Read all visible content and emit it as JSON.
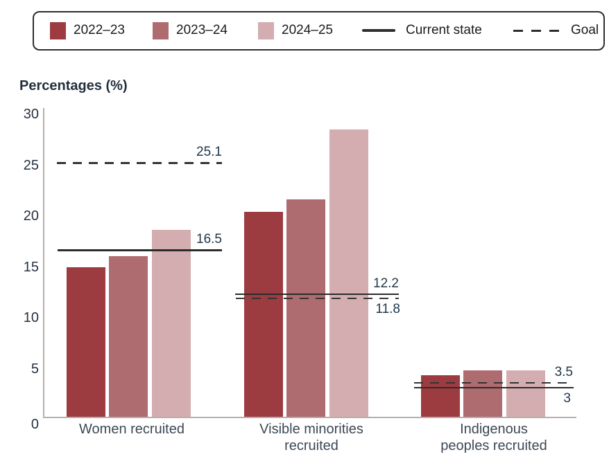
{
  "legend": {
    "items": [
      {
        "label": "2022–23",
        "type": "swatch"
      },
      {
        "label": "2023–24",
        "type": "swatch"
      },
      {
        "label": "2024–25",
        "type": "swatch"
      },
      {
        "label": "Current state",
        "type": "solid-line"
      },
      {
        "label": "Goal",
        "type": "dashed-line"
      }
    ]
  },
  "colors": {
    "bar_2022_23": "#9c3c40",
    "bar_2023_24": "#ae6b70",
    "bar_2024_25": "#d3adb0",
    "reference_line": "#2e2e2e",
    "axis_line": "#b6afab",
    "label_text": "#223648"
  },
  "chart_data": {
    "type": "bar",
    "title": "",
    "ylabel": "Percentages (%)",
    "xlabel": "",
    "ylim": [
      0,
      30
    ],
    "yticks": [
      0,
      5,
      10,
      15,
      20,
      25,
      30
    ],
    "grid": false,
    "legend_position": "top",
    "categories": [
      "Women recruited",
      "Visible minorities recruited",
      "Indigenous peoples recruited"
    ],
    "categories_display": [
      "Women recruited",
      "Visible minorities\nrecruited",
      "Indigenous\npeoples recruited"
    ],
    "series": [
      {
        "name": "2022–23",
        "color": "#9c3c40",
        "values": [
          14.8,
          20.3,
          4.2
        ]
      },
      {
        "name": "2023–24",
        "color": "#ae6b70",
        "values": [
          15.9,
          21.5,
          4.7
        ]
      },
      {
        "name": "2024–25",
        "color": "#d3adb0",
        "values": [
          18.5,
          28.4,
          4.7
        ]
      }
    ],
    "reference_lines": [
      {
        "group": "Women recruited",
        "name": "Current state",
        "style": "solid",
        "value": 16.5,
        "label": "16.5"
      },
      {
        "group": "Women recruited",
        "name": "Goal",
        "style": "dashed",
        "value": 25.1,
        "label": "25.1"
      },
      {
        "group": "Visible minorities recruited",
        "name": "Current state",
        "style": "solid",
        "value": 12.2,
        "label": "12.2"
      },
      {
        "group": "Visible minorities recruited",
        "name": "Goal",
        "style": "dashed",
        "value": 11.8,
        "label": "11.8"
      },
      {
        "group": "Indigenous peoples recruited",
        "name": "Current state",
        "style": "solid",
        "value": 3,
        "label": "3"
      },
      {
        "group": "Indigenous peoples recruited",
        "name": "Goal",
        "style": "dashed",
        "value": 3.5,
        "label": "3.5"
      }
    ]
  }
}
